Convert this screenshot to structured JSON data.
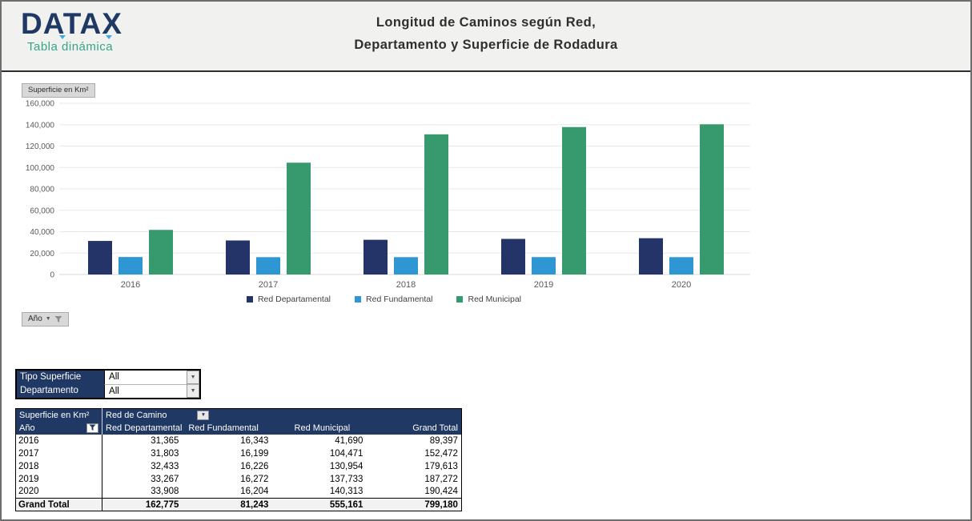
{
  "header": {
    "logo_text": "DATAX",
    "logo_subtitle": "Tabla dinámica",
    "title_line1": "Longitud de Caminos según Red,",
    "title_line2": "Departamento y Superficie de Rodadura"
  },
  "chart": {
    "value_field_button": "Superficie en Km²",
    "axis_field_button": "Año"
  },
  "chart_data": {
    "type": "bar",
    "categories": [
      "2016",
      "2017",
      "2018",
      "2019",
      "2020"
    ],
    "series": [
      {
        "name": "Red Departamental",
        "color": "#253468",
        "values": [
          31365,
          31803,
          32433,
          33267,
          33908
        ]
      },
      {
        "name": "Red Fundamental",
        "color": "#2e96d3",
        "values": [
          16343,
          16199,
          16226,
          16272,
          16204
        ]
      },
      {
        "name": "Red Municipal",
        "color": "#369a6e",
        "values": [
          41690,
          104471,
          130954,
          137733,
          140313
        ]
      }
    ],
    "title": "",
    "xlabel": "",
    "ylabel": "Superficie en Km²",
    "ylim": [
      0,
      160000
    ],
    "ytick_step": 20000,
    "grid": true,
    "legend_position": "bottom"
  },
  "filters": [
    {
      "label": "Tipo Superficie",
      "value": "All"
    },
    {
      "label": "Departamento",
      "value": "All"
    }
  ],
  "pivot": {
    "corner_label": "Superficie en Km²",
    "column_field_label": "Red de Camino",
    "row_field_label": "Año",
    "columns": [
      "Red Departamental",
      "Red Fundamental",
      "Red Municipal",
      "Grand Total"
    ],
    "rows": [
      {
        "label": "2016",
        "values": [
          "31,365",
          "16,343",
          "41,690",
          "89,397"
        ]
      },
      {
        "label": "2017",
        "values": [
          "31,803",
          "16,199",
          "104,471",
          "152,472"
        ]
      },
      {
        "label": "2018",
        "values": [
          "32,433",
          "16,226",
          "130,954",
          "179,613"
        ]
      },
      {
        "label": "2019",
        "values": [
          "33,267",
          "16,272",
          "137,733",
          "187,272"
        ]
      },
      {
        "label": "2020",
        "values": [
          "33,908",
          "16,204",
          "140,313",
          "190,424"
        ]
      }
    ],
    "grand_total": {
      "label": "Grand Total",
      "values": [
        "162,775",
        "81,243",
        "555,161",
        "799,180"
      ]
    }
  },
  "colors": {
    "header_navy": "#1f3864",
    "bar_navy": "#253468",
    "bar_blue": "#2e96d3",
    "bar_green": "#369a6e",
    "subtitle_teal": "#35a488",
    "gridline": "#e8e8e8",
    "axis_text": "#595959"
  }
}
